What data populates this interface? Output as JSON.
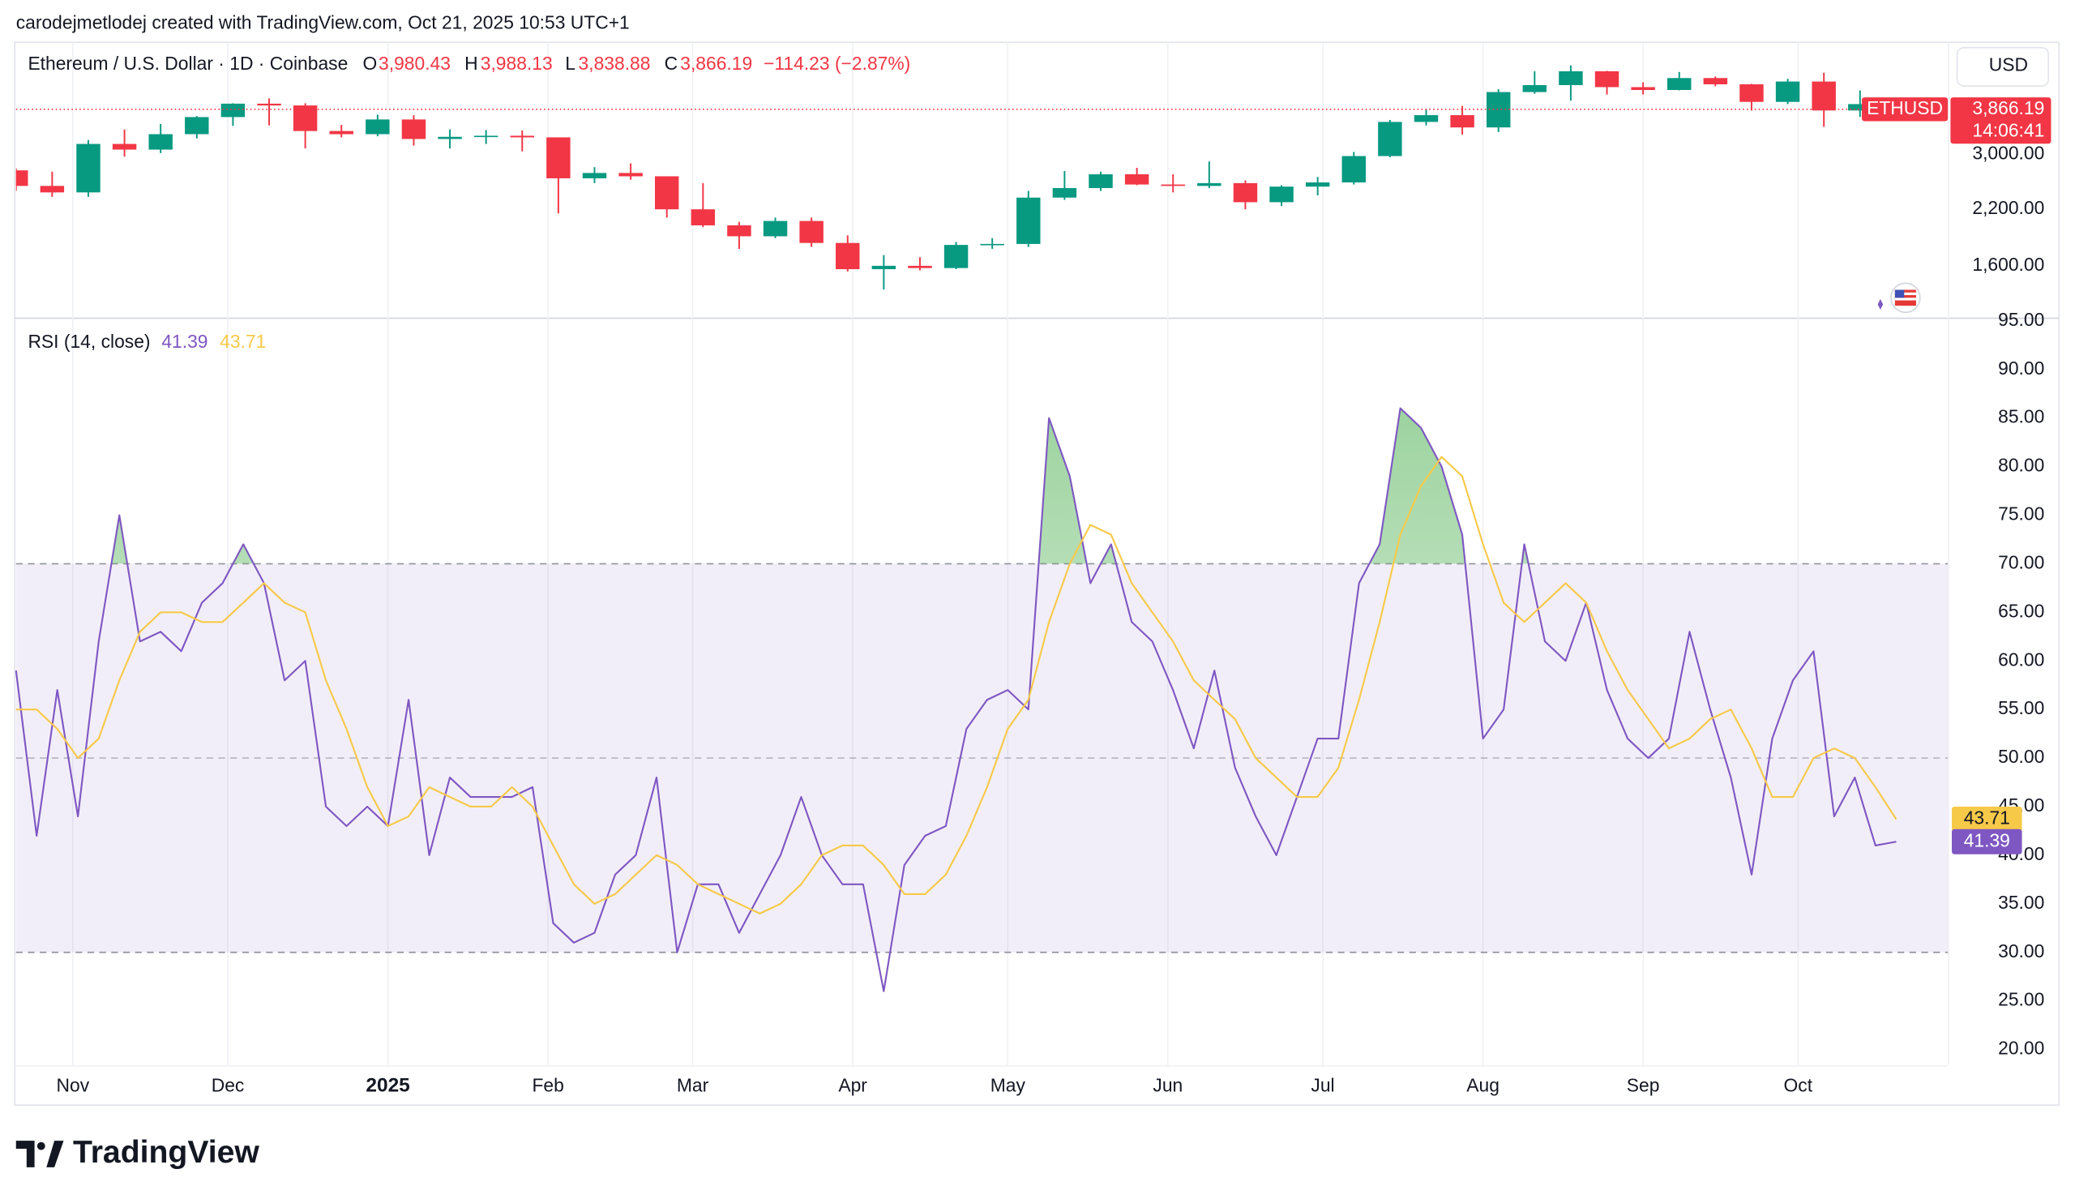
{
  "header": {
    "credit": "carodejmetlodej created with TradingView.com, Oct 21, 2025 10:53 UTC+1",
    "logo": "TradingView"
  },
  "chart_data": [
    {
      "type": "candlestick",
      "title": "Ethereum / U.S. Dollar · 1D · Coinbase",
      "ohlc_legend": [
        {
          "label": "O",
          "value": "3,980.43"
        },
        {
          "label": "H",
          "value": "3,988.13"
        },
        {
          "label": "L",
          "value": "3,838.88"
        },
        {
          "label": "C",
          "value": "3,866.19"
        }
      ],
      "change": "−114.23 (−2.87%)",
      "currency": "USD",
      "x": [
        0,
        7,
        14,
        21,
        28,
        35,
        42,
        49,
        56,
        63,
        70,
        77,
        84,
        91,
        98,
        105,
        112,
        119,
        126,
        133,
        140,
        147,
        154,
        161,
        168,
        175,
        182,
        189,
        196,
        203,
        210,
        217,
        224,
        231,
        238,
        245,
        252,
        259,
        266,
        273,
        280,
        287,
        294,
        301,
        308,
        315,
        322,
        329,
        336,
        343,
        350,
        357,
        364
      ],
      "open": [
        2740,
        2510,
        2420,
        3180,
        3080,
        3360,
        3700,
        3990,
        3950,
        3420,
        3360,
        3650,
        3270,
        3310,
        3330,
        3300,
        2620,
        2700,
        2650,
        2200,
        2010,
        1890,
        2060,
        1820,
        1570,
        1600,
        1580,
        1800,
        1810,
        2350,
        2480,
        2680,
        2530,
        2510,
        2550,
        2290,
        2500,
        2560,
        2970,
        3600,
        3740,
        3490,
        4260,
        4430,
        4790,
        4380,
        4310,
        4610,
        4450,
        4030,
        4520,
        3840,
        3980.43
      ],
      "high": [
        2770,
        2720,
        3250,
        3450,
        3560,
        3720,
        4000,
        4110,
        4000,
        3540,
        3750,
        3740,
        3450,
        3440,
        3430,
        3300,
        2790,
        2850,
        2650,
        2550,
        2050,
        2100,
        2100,
        1900,
        1700,
        1680,
        1830,
        1870,
        2440,
        2730,
        2720,
        2780,
        2680,
        2880,
        2590,
        2520,
        2640,
        3040,
        3640,
        3860,
        3940,
        4330,
        4790,
        4950,
        4800,
        4500,
        4770,
        4650,
        4460,
        4590,
        4750,
        4300,
        3988.13
      ],
      "low": [
        2440,
        2360,
        2360,
        2960,
        3020,
        3280,
        3520,
        3530,
        3100,
        3300,
        3320,
        3150,
        3100,
        3180,
        3050,
        2150,
        2550,
        2600,
        2100,
        1990,
        1760,
        1870,
        1780,
        1550,
        1400,
        1560,
        1570,
        1760,
        1780,
        2320,
        2440,
        2520,
        2420,
        2480,
        2200,
        2240,
        2380,
        2530,
        2950,
        3530,
        3350,
        3400,
        4220,
        4060,
        4200,
        4200,
        4300,
        4400,
        3840,
        3980,
        3500,
        3700,
        3838.88
      ],
      "close": [
        2510,
        2420,
        3180,
        3080,
        3360,
        3700,
        3990,
        3950,
        3420,
        3360,
        3650,
        3270,
        3310,
        3330,
        3300,
        2620,
        2700,
        2650,
        2200,
        2010,
        1890,
        2060,
        1820,
        1570,
        1600,
        1580,
        1800,
        1810,
        2350,
        2480,
        2680,
        2530,
        2510,
        2550,
        2290,
        2500,
        2560,
        2970,
        3600,
        3740,
        3490,
        4260,
        4430,
        4790,
        4380,
        4310,
        4610,
        4450,
        4030,
        4520,
        3840,
        3980,
        3866.19
      ],
      "colors": {
        "up": "#089981",
        "down": "#f23645"
      },
      "log_scale": true,
      "xlim": [
        0,
        374
      ],
      "ylim": [
        1195,
        5637
      ],
      "yticks": [
        {
          "value": 1600,
          "label": "1,600.00"
        },
        {
          "value": 2200,
          "label": "2,200.00"
        },
        {
          "value": 3000,
          "label": "3,000.00"
        }
      ],
      "last_price": {
        "symbol": "ETHUSD",
        "value": 3866.19,
        "label": "3,866.19",
        "countdown": "14:06:41"
      }
    },
    {
      "type": "line",
      "title": "RSI (14, close)",
      "series": [
        {
          "color": "#7e57c2",
          "last_label": "41.39",
          "x": [
            0,
            4,
            8,
            12,
            16,
            20,
            24,
            28,
            32,
            36,
            40,
            44,
            48,
            52,
            56,
            60,
            64,
            68,
            72,
            76,
            80,
            84,
            88,
            92,
            96,
            100,
            104,
            108,
            112,
            116,
            120,
            124,
            128,
            132,
            136,
            140,
            144,
            148,
            152,
            156,
            160,
            164,
            168,
            172,
            176,
            180,
            184,
            188,
            192,
            196,
            200,
            204,
            208,
            212,
            216,
            220,
            224,
            228,
            232,
            236,
            240,
            244,
            248,
            252,
            256,
            260,
            264,
            268,
            272,
            276,
            280,
            284,
            288,
            292,
            296,
            300,
            304,
            308,
            312,
            316,
            320,
            324,
            328,
            332,
            336,
            340,
            344,
            348,
            352,
            356,
            360,
            364
          ],
          "values": [
            59,
            42,
            57,
            44,
            62,
            75,
            62,
            63,
            61,
            66,
            68,
            72,
            68,
            58,
            60,
            45,
            43,
            45,
            43,
            56,
            40,
            48,
            46,
            46,
            46,
            47,
            33,
            31,
            32,
            38,
            40,
            48,
            30,
            37,
            37,
            32,
            36,
            40,
            46,
            40,
            37,
            37,
            26,
            39,
            42,
            43,
            53,
            56,
            57,
            55,
            85,
            79,
            68,
            72,
            64,
            62,
            57,
            51,
            59,
            49,
            44,
            40,
            46,
            52,
            52,
            68,
            72,
            86,
            84,
            80,
            73,
            52,
            55,
            72,
            62,
            60,
            66,
            57,
            52,
            50,
            52,
            63,
            55,
            48,
            38,
            52,
            58,
            61,
            44,
            48,
            41,
            41.39
          ]
        },
        {
          "color": "#f7c948",
          "last_label": "43.71",
          "x": [
            0,
            4,
            8,
            12,
            16,
            20,
            24,
            28,
            32,
            36,
            40,
            44,
            48,
            52,
            56,
            60,
            64,
            68,
            72,
            76,
            80,
            84,
            88,
            92,
            96,
            100,
            104,
            108,
            112,
            116,
            120,
            124,
            128,
            132,
            136,
            140,
            144,
            148,
            152,
            156,
            160,
            164,
            168,
            172,
            176,
            180,
            184,
            188,
            192,
            196,
            200,
            204,
            208,
            212,
            216,
            220,
            224,
            228,
            232,
            236,
            240,
            244,
            248,
            252,
            256,
            260,
            264,
            268,
            272,
            276,
            280,
            284,
            288,
            292,
            296,
            300,
            304,
            308,
            312,
            316,
            320,
            324,
            328,
            332,
            336,
            340,
            344,
            348,
            352,
            356,
            360,
            364
          ],
          "values": [
            55,
            55,
            53,
            50,
            52,
            58,
            63,
            65,
            65,
            64,
            64,
            66,
            68,
            66,
            65,
            58,
            53,
            47,
            43,
            44,
            47,
            46,
            45,
            45,
            47,
            45,
            41,
            37,
            35,
            36,
            38,
            40,
            39,
            37,
            36,
            35,
            34,
            35,
            37,
            40,
            41,
            41,
            39,
            36,
            36,
            38,
            42,
            47,
            53,
            56,
            64,
            70,
            74,
            73,
            68,
            65,
            62,
            58,
            56,
            54,
            50,
            48,
            46,
            46,
            49,
            56,
            64,
            73,
            78,
            81,
            79,
            72,
            66,
            64,
            66,
            68,
            66,
            61,
            57,
            54,
            51,
            52,
            54,
            55,
            51,
            46,
            46,
            50,
            51,
            50,
            47,
            43.71
          ]
        }
      ],
      "bands": {
        "upper": 70,
        "middle": 50,
        "lower": 30
      },
      "xlim": [
        0,
        374
      ],
      "ylim": [
        18.37,
        95.2
      ],
      "xticks": [
        {
          "value": 11,
          "label": "Nov"
        },
        {
          "value": 41,
          "label": "Dec"
        },
        {
          "value": 72,
          "label": "2025"
        },
        {
          "value": 103,
          "label": "Feb"
        },
        {
          "value": 131,
          "label": "Mar"
        },
        {
          "value": 162,
          "label": "Apr"
        },
        {
          "value": 192,
          "label": "May"
        },
        {
          "value": 223,
          "label": "Jun"
        },
        {
          "value": 253,
          "label": "Jul"
        },
        {
          "value": 284,
          "label": "Aug"
        },
        {
          "value": 315,
          "label": "Sep"
        },
        {
          "value": 345,
          "label": "Oct"
        }
      ],
      "yticks": [
        {
          "value": 20,
          "label": "20.00"
        },
        {
          "value": 25,
          "label": "25.00"
        },
        {
          "value": 30,
          "label": "30.00"
        },
        {
          "value": 35,
          "label": "35.00"
        },
        {
          "value": 40,
          "label": "40.00"
        },
        {
          "value": 45,
          "label": "45.00"
        },
        {
          "value": 50,
          "label": "50.00"
        },
        {
          "value": 55,
          "label": "55.00"
        },
        {
          "value": 60,
          "label": "60.00"
        },
        {
          "value": 65,
          "label": "65.00"
        },
        {
          "value": 70,
          "label": "70.00"
        },
        {
          "value": 75,
          "label": "75.00"
        },
        {
          "value": 80,
          "label": "80.00"
        },
        {
          "value": 85,
          "label": "85.00"
        },
        {
          "value": 90,
          "label": "90.00"
        },
        {
          "value": 95,
          "label": "95.00"
        }
      ]
    }
  ]
}
